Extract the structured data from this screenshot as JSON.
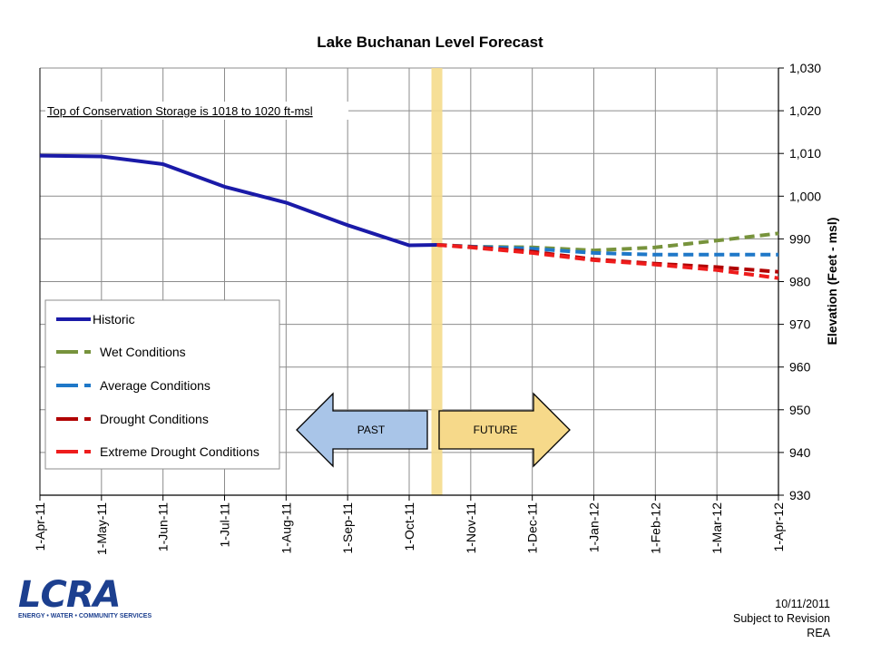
{
  "chart_data": {
    "type": "line",
    "title": "Lake Buchanan Level Forecast",
    "ylabel": "Elevation (Feet - msl)",
    "ylim": [
      930,
      1030
    ],
    "yticks": [
      930,
      940,
      950,
      960,
      970,
      980,
      990,
      1000,
      1010,
      1020,
      1030
    ],
    "ytick_labels": [
      "930",
      "940",
      "950",
      "960",
      "970",
      "980",
      "990",
      "1,000",
      "1,010",
      "1,020",
      "1,030"
    ],
    "categories": [
      "1-Apr-11",
      "1-May-11",
      "1-Jun-11",
      "1-Jul-11",
      "1-Aug-11",
      "1-Sep-11",
      "1-Oct-11",
      "1-Nov-11",
      "1-Dec-11",
      "1-Jan-12",
      "1-Feb-12",
      "1-Mar-12",
      "1-Apr-12"
    ],
    "grid": true,
    "y_axis_side": "right",
    "legend_position": "bottom-left",
    "annotation": "Top of Conservation Storage is 1018 to 1020 ft-msl",
    "current_marker": {
      "x": 6.45,
      "label": "10/11/2011",
      "color": "#f5dc8c"
    },
    "past_label": "PAST",
    "future_label": "FUTURE",
    "series": [
      {
        "name": "Historic",
        "color": "#1a1aa8",
        "style": "solid",
        "points": [
          [
            0,
            1009.5
          ],
          [
            1,
            1009.3
          ],
          [
            2,
            1007.5
          ],
          [
            3,
            1002.2
          ],
          [
            4,
            998.5
          ],
          [
            5,
            993.2
          ],
          [
            6,
            988.5
          ],
          [
            6.45,
            988.6
          ]
        ]
      },
      {
        "name": "Wet Conditions",
        "color": "#77933c",
        "style": "dashed",
        "points": [
          [
            6.45,
            988.6
          ],
          [
            7,
            988.2
          ],
          [
            8,
            988.0
          ],
          [
            9,
            987.3
          ],
          [
            10,
            988.0
          ],
          [
            11,
            989.6
          ],
          [
            12,
            991.3
          ]
        ]
      },
      {
        "name": "Average Conditions",
        "color": "#1f78c8",
        "style": "dashed",
        "points": [
          [
            6.45,
            988.6
          ],
          [
            7,
            988.2
          ],
          [
            8,
            987.7
          ],
          [
            9,
            986.7
          ],
          [
            10,
            986.3
          ],
          [
            11,
            986.3
          ],
          [
            12,
            986.3
          ]
        ]
      },
      {
        "name": "Drought Conditions",
        "color": "#b00000",
        "style": "dashed",
        "points": [
          [
            6.45,
            988.6
          ],
          [
            7,
            988.1
          ],
          [
            8,
            987.0
          ],
          [
            9,
            985.2
          ],
          [
            10,
            984.2
          ],
          [
            11,
            983.4
          ],
          [
            12,
            982.3
          ]
        ]
      },
      {
        "name": "Extreme Drought Conditions",
        "color": "#ee1c1c",
        "style": "dashed",
        "points": [
          [
            6.45,
            988.6
          ],
          [
            7,
            988.0
          ],
          [
            8,
            986.7
          ],
          [
            9,
            985.0
          ],
          [
            10,
            984.0
          ],
          [
            11,
            982.7
          ],
          [
            12,
            980.8
          ]
        ]
      }
    ]
  },
  "logo": {
    "word": "LCRA",
    "tagline": "ENERGY • WATER • COMMUNITY SERVICES",
    "color": "#1c3f8f"
  },
  "footer": {
    "date": "10/11/2011",
    "note": "Subject to Revision",
    "author": "REA"
  }
}
